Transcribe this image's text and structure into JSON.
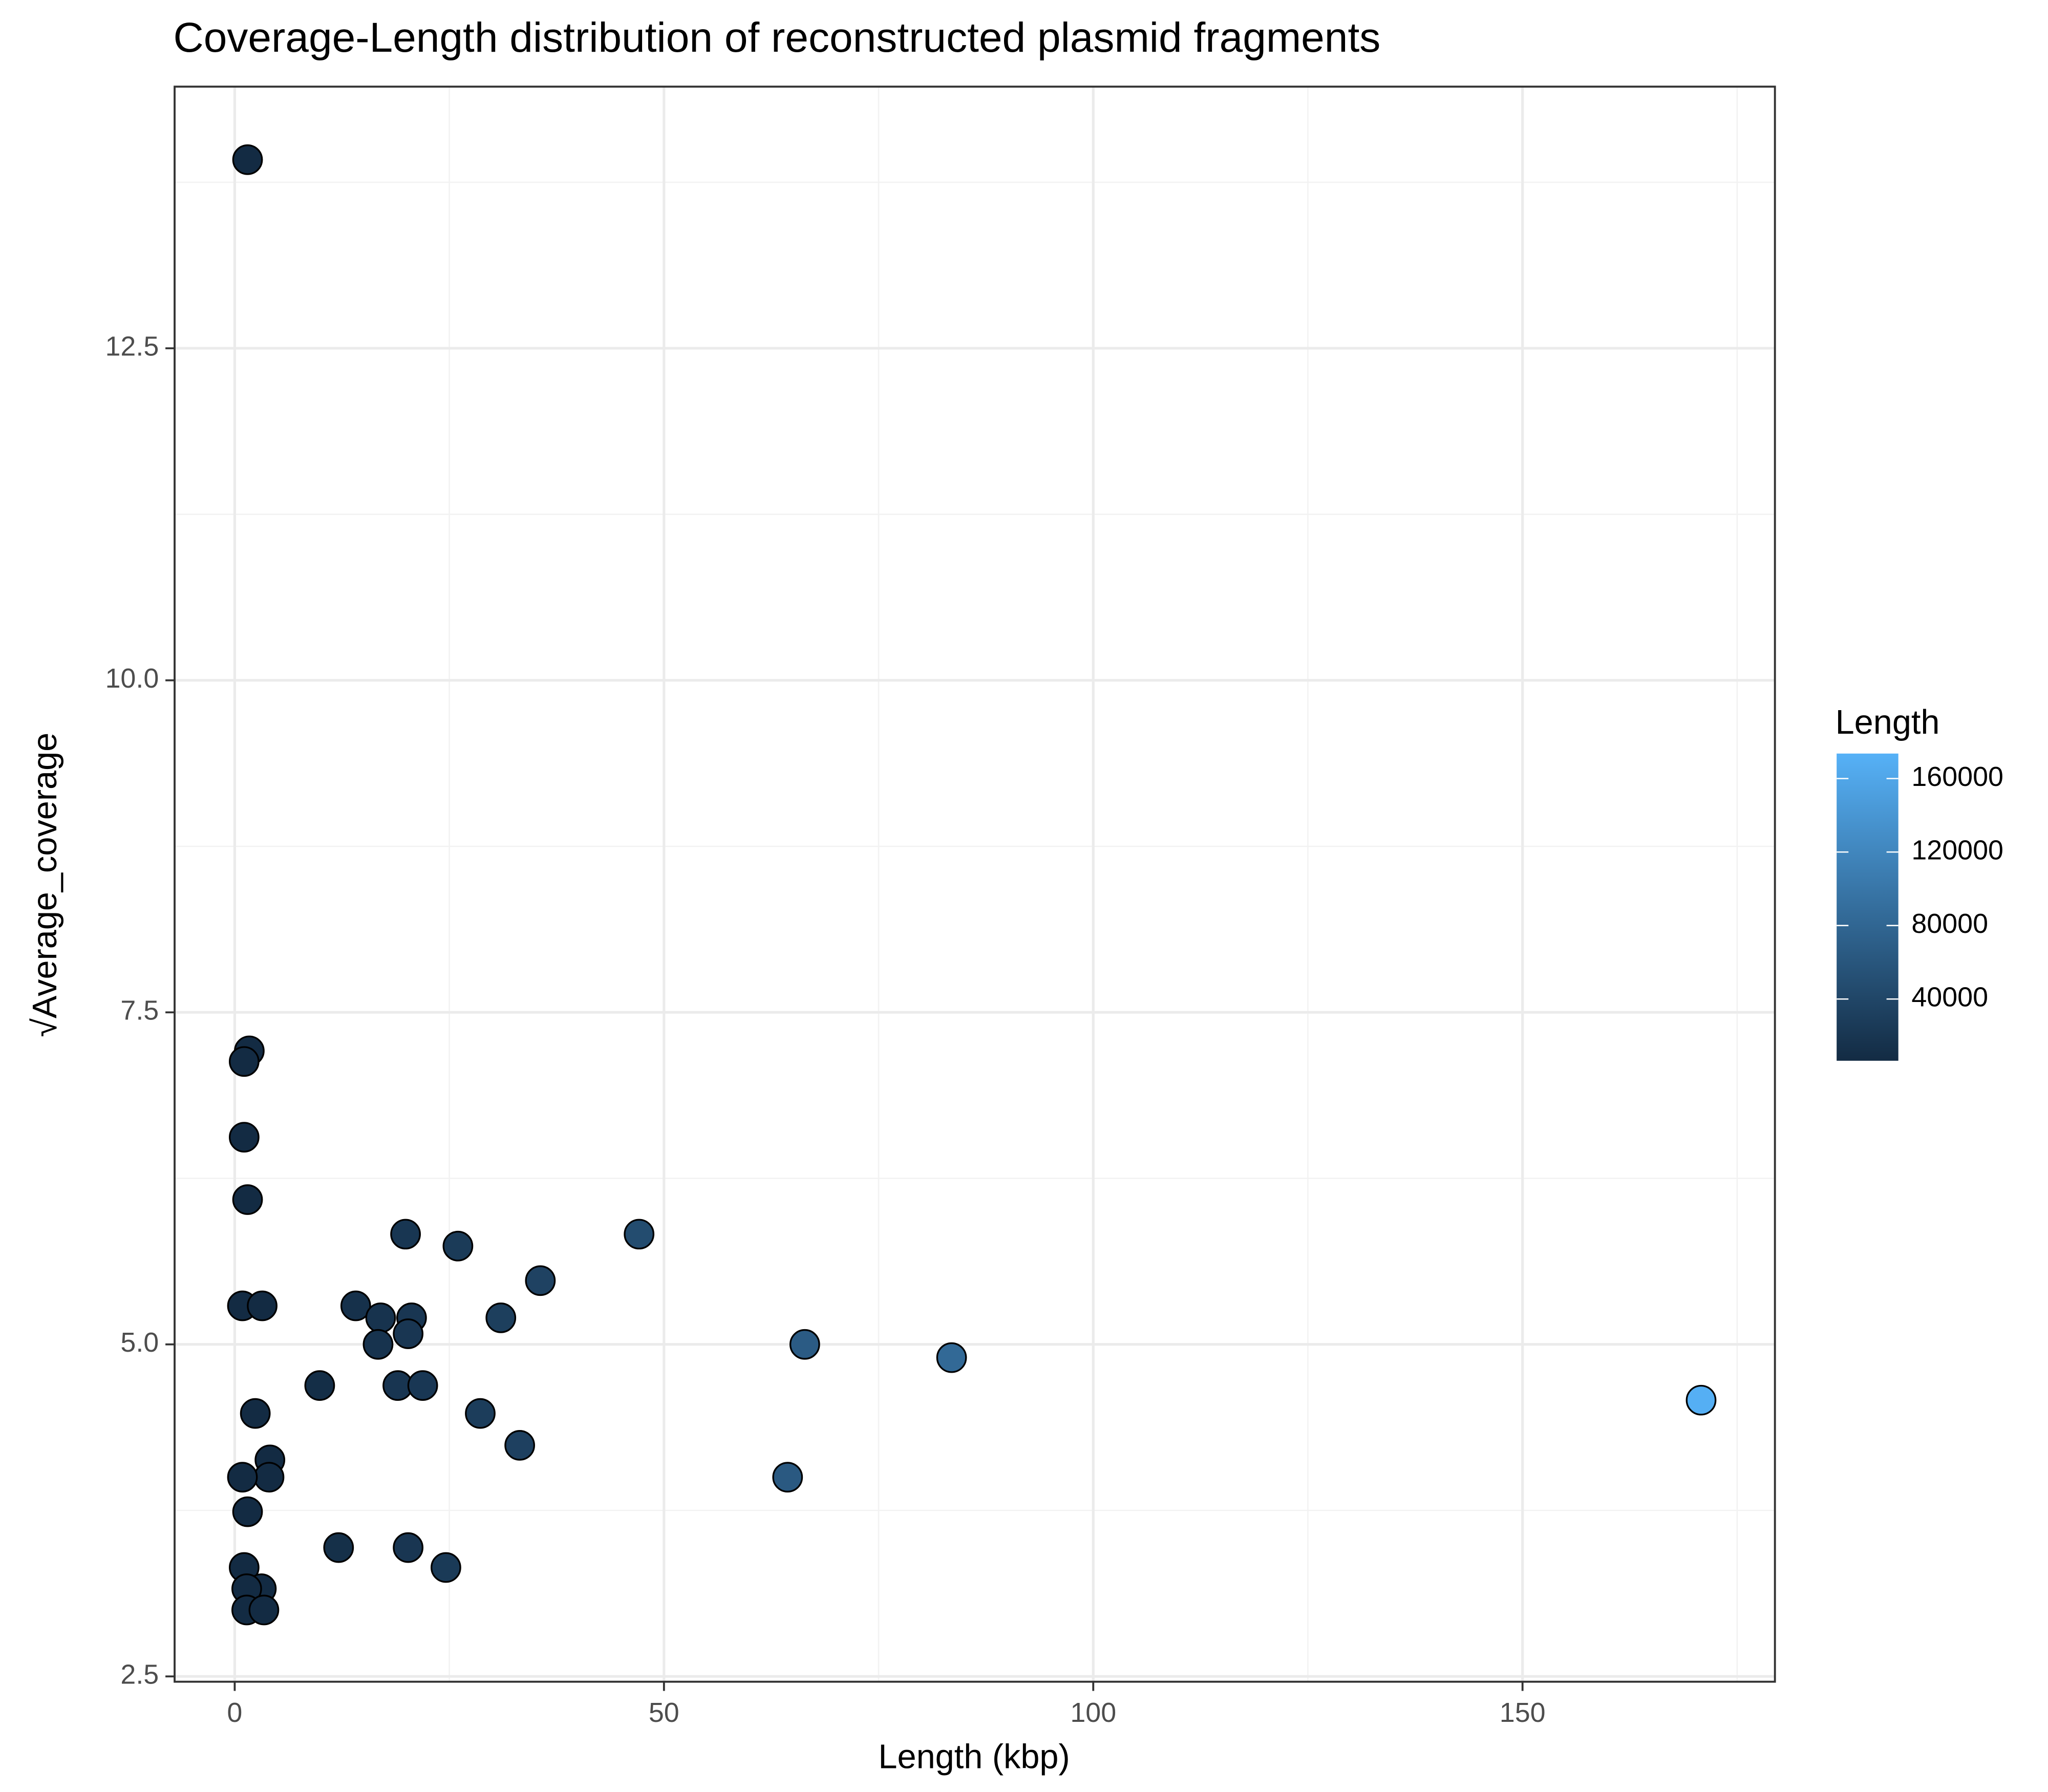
{
  "chart_data": {
    "type": "scatter",
    "title": "Coverage-Length distribution of reconstructed plasmid fragments",
    "x_label": "Length (kbp)",
    "y_label": "√Average_coverage",
    "xlim": [
      -7.0,
      179.4
    ],
    "ylim": [
      2.46,
      14.47
    ],
    "xticks": [
      0,
      50,
      100,
      150
    ],
    "yticks": [
      {
        "value": 2.5,
        "label": "2.5"
      },
      {
        "value": 5,
        "label": "5.0"
      },
      {
        "value": 7.5,
        "label": "7.5"
      },
      {
        "value": 10,
        "label": "10.0"
      },
      {
        "value": 12.5,
        "label": "12.5"
      }
    ],
    "grid": true,
    "color_scale": {
      "title": "Length",
      "low": "#132B43",
      "high": "#56B1F7",
      "lim": [
        6400,
        173600
      ],
      "ticks": [
        40000,
        80000,
        120000,
        160000
      ]
    },
    "x": [
      1.5,
      1.7,
      1.1,
      1.1,
      1.5,
      0.9,
      3.2,
      14.1,
      17.0,
      20.6,
      16.7,
      20.2,
      19.9,
      26.0,
      47.1,
      35.6,
      31.0,
      66.4,
      83.5,
      170.8,
      9.9,
      19.0,
      21.9,
      2.4,
      28.6,
      33.2,
      4.1,
      4.0,
      0.9,
      64.4,
      1.5,
      12.1,
      20.2,
      24.6,
      1.1,
      3.1,
      1.4,
      1.4,
      3.4
    ],
    "y": [
      13.92,
      7.21,
      7.13,
      6.56,
      6.09,
      5.29,
      5.29,
      5.29,
      5.2,
      5.2,
      5.0,
      5.08,
      5.83,
      5.74,
      5.83,
      5.48,
      5.2,
      5.0,
      4.9,
      4.58,
      4.69,
      4.69,
      4.69,
      4.48,
      4.48,
      4.24,
      4.13,
      4.0,
      4.0,
      4.0,
      3.74,
      3.47,
      3.47,
      3.32,
      3.32,
      3.16,
      3.16,
      3.0,
      3.0
    ]
  }
}
